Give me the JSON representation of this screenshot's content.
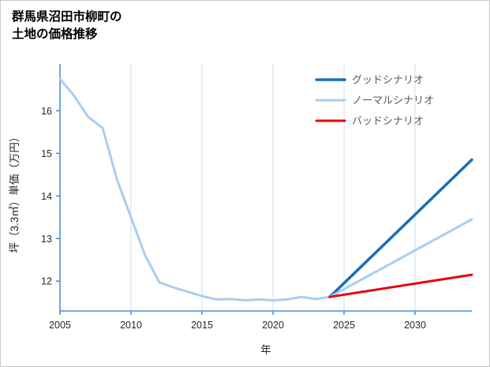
{
  "header": {
    "title_line1": "群馬県沼田市柳町の",
    "title_line2": "土地の価格推移"
  },
  "chart_data": {
    "type": "line",
    "title": "群馬県沼田市柳町の土地の価格推移",
    "xlabel": "年",
    "ylabel": "坪（3.3㎡）単価（万円）",
    "xlim": [
      2005,
      2034
    ],
    "ylim": [
      11.3,
      17.1
    ],
    "x_ticks": [
      2005,
      2010,
      2015,
      2020,
      2025,
      2030
    ],
    "y_ticks": [
      12,
      13,
      14,
      15,
      16
    ],
    "grid": "vertical-only",
    "legend_position": "top-right",
    "colors": {
      "spine": "#4a90d9",
      "grid": "#d2e6f7",
      "tick_text": "#262626",
      "legend_text": "#595959",
      "good": "#1b6db5",
      "normal": "#a8cdf0",
      "bad": "#e8000d"
    },
    "series": [
      {
        "name": "history",
        "color": "#a8cdf0",
        "width": 3,
        "x": [
          2005,
          2006,
          2007,
          2008,
          2009,
          2010,
          2011,
          2012,
          2013,
          2014,
          2015,
          2016,
          2017,
          2018,
          2019,
          2020,
          2021,
          2022,
          2023,
          2024
        ],
        "values": [
          16.75,
          16.35,
          15.85,
          15.6,
          14.4,
          13.5,
          12.6,
          11.97,
          11.85,
          11.75,
          11.65,
          11.57,
          11.58,
          11.55,
          11.57,
          11.55,
          11.57,
          11.63,
          11.58,
          11.63
        ]
      },
      {
        "name": "グッドシナリオ",
        "color": "#1b6db5",
        "width": 3.5,
        "x": [
          2024,
          2034
        ],
        "values": [
          11.63,
          14.85
        ]
      },
      {
        "name": "ノーマルシナリオ",
        "color": "#a8cdf0",
        "width": 3,
        "x": [
          2024,
          2034
        ],
        "values": [
          11.63,
          13.45
        ]
      },
      {
        "name": "バッドシナリオ",
        "color": "#e8000d",
        "width": 3,
        "x": [
          2024,
          2034
        ],
        "values": [
          11.63,
          12.15
        ]
      }
    ],
    "legend": [
      {
        "label": "グッドシナリオ",
        "color": "#1b6db5",
        "width": 3.5
      },
      {
        "label": "ノーマルシナリオ",
        "color": "#a8cdf0",
        "width": 3
      },
      {
        "label": "バッドシナリオ",
        "color": "#e8000d",
        "width": 3
      }
    ]
  }
}
